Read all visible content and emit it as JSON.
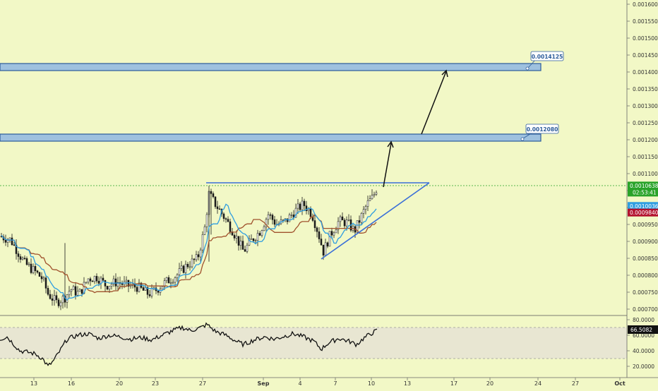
{
  "colors": {
    "background": "#f2f8c6",
    "axis_panel": "#f2f8c6",
    "candle_up": "#ffffff",
    "candle_down": "#1a1a1a",
    "conversion_line": "#2f9ee0",
    "base_line": "#a0522d",
    "trend_line": "#3a6fd8",
    "zone_fill": "#9ec1df",
    "zone_stroke": "#2c5c9a",
    "current_price_line": "#29a329",
    "rsi_band": "#e8e6d2",
    "rsi_line": "#111111"
  },
  "chart_data": [
    {
      "type": "candlestick",
      "name": "price",
      "y_axis": {
        "range": [
          0.00068,
          0.0016
        ],
        "ticks": [
          "0.0016000",
          "0.0015500",
          "0.0015000",
          "0.0014500",
          "0.0014000",
          "0.0013500",
          "0.0013000",
          "0.0012500",
          "0.0012000",
          "0.0011500",
          "0.0011000",
          "0.0010500",
          "0.0010000",
          "0.0009500",
          "0.0009000",
          "0.0008500",
          "0.0008000",
          "0.0007500",
          "0.0007000"
        ]
      },
      "x_axis": {
        "ticks": [
          "13",
          "16",
          "20",
          "23",
          "27",
          "Sep",
          "4",
          "7",
          "10",
          "13",
          "17",
          "20",
          "24",
          "27",
          "Oct"
        ]
      },
      "price_labels": [
        {
          "text": "0.0010638",
          "sub": "02:53:41",
          "value": 0.0010638,
          "color": "#29a329"
        },
        {
          "text": "0.0010036",
          "value": 0.0010036,
          "color": "#2f9ee0"
        },
        {
          "text": "0.0009840",
          "value": 0.000984,
          "color": "#b3122e"
        }
      ],
      "zones": [
        {
          "label": "0.0014125",
          "low": 0.0014025,
          "high": 0.0014225
        },
        {
          "label": "0.0012080",
          "low": 0.001198,
          "high": 0.001218
        }
      ],
      "current_price": 0.0010638
    },
    {
      "type": "line",
      "name": "RSI",
      "y_axis": {
        "range": [
          10,
          90
        ],
        "ticks": [
          "80.0000",
          "60.0000",
          "40.0000",
          "20.0000"
        ],
        "band": [
          30,
          70
        ]
      },
      "current_value_label": "66.5082",
      "current_value": 66.5082
    }
  ]
}
